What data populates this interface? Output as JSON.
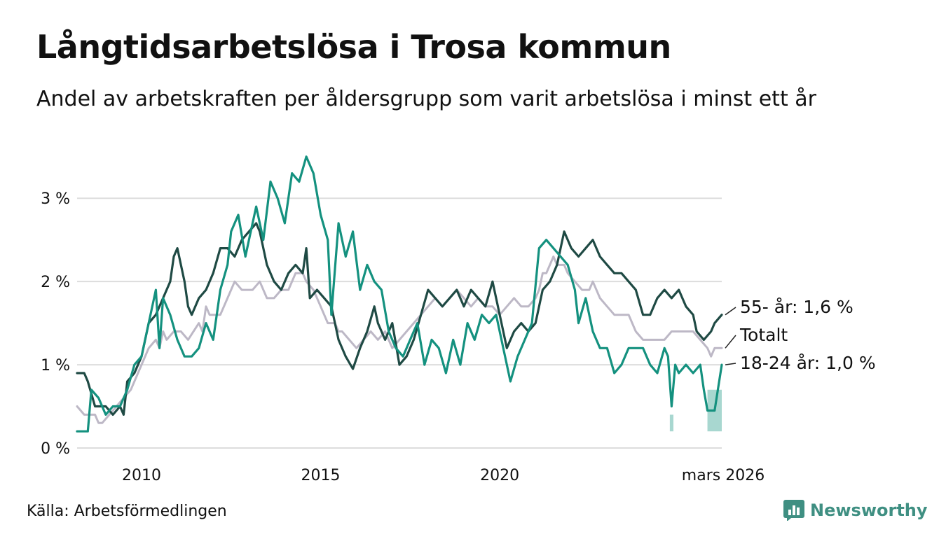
{
  "header": {
    "title": "Långtidsarbetslösa i Trosa kommun",
    "subtitle": "Andel av arbetskraften per åldersgrupp som varit arbetslösa i minst ett år"
  },
  "footer": {
    "source": "Källa: Arbetsförmedlingen",
    "brand": "Newsworthy"
  },
  "colors": {
    "old": "#1f4a44",
    "young": "#14917f",
    "total": "#bdb8c6",
    "band": "#9fd3cb",
    "grid": "#dddddd",
    "brand": "#3f8f82"
  },
  "chart_data": {
    "type": "line",
    "title": "Långtidsarbetslösa i Trosa kommun",
    "subtitle": "Andel av arbetskraften per åldersgrupp som varit arbetslösa i minst ett år",
    "xlim": [
      2008.2,
      2026.2
    ],
    "ylim": [
      0,
      3.7
    ],
    "y_ticks": [
      {
        "value": 0,
        "label": "0 %"
      },
      {
        "value": 1,
        "label": "1 %"
      },
      {
        "value": 2,
        "label": "2 %"
      },
      {
        "value": 3,
        "label": "3 %"
      }
    ],
    "x_ticks": [
      {
        "value": 2010,
        "label": "2010"
      },
      {
        "value": 2015,
        "label": "2015"
      },
      {
        "value": 2020,
        "label": "2020"
      },
      {
        "value": 2026.2,
        "label": "mars 2026"
      }
    ],
    "grid": true,
    "series": [
      {
        "name": "Totalt",
        "end_label": "Totalt",
        "color_key": "total",
        "points": [
          [
            2008.2,
            0.5
          ],
          [
            2008.4,
            0.4
          ],
          [
            2008.7,
            0.4
          ],
          [
            2008.8,
            0.3
          ],
          [
            2008.9,
            0.3
          ],
          [
            2009.1,
            0.4
          ],
          [
            2009.3,
            0.5
          ],
          [
            2009.5,
            0.6
          ],
          [
            2009.7,
            0.7
          ],
          [
            2009.9,
            0.9
          ],
          [
            2010.0,
            1.0
          ],
          [
            2010.2,
            1.2
          ],
          [
            2010.4,
            1.3
          ],
          [
            2010.5,
            1.2
          ],
          [
            2010.6,
            1.4
          ],
          [
            2010.7,
            1.3
          ],
          [
            2010.9,
            1.4
          ],
          [
            2011.1,
            1.4
          ],
          [
            2011.3,
            1.3
          ],
          [
            2011.6,
            1.5
          ],
          [
            2011.7,
            1.4
          ],
          [
            2011.8,
            1.7
          ],
          [
            2011.9,
            1.6
          ],
          [
            2012.2,
            1.6
          ],
          [
            2012.4,
            1.8
          ],
          [
            2012.6,
            2.0
          ],
          [
            2012.8,
            1.9
          ],
          [
            2013.1,
            1.9
          ],
          [
            2013.3,
            2.0
          ],
          [
            2013.5,
            1.8
          ],
          [
            2013.7,
            1.8
          ],
          [
            2013.9,
            1.9
          ],
          [
            2014.1,
            1.9
          ],
          [
            2014.3,
            2.1
          ],
          [
            2014.5,
            2.1
          ],
          [
            2014.6,
            2.0
          ],
          [
            2014.8,
            1.9
          ],
          [
            2015.0,
            1.7
          ],
          [
            2015.2,
            1.5
          ],
          [
            2015.4,
            1.5
          ],
          [
            2015.5,
            1.4
          ],
          [
            2015.6,
            1.4
          ],
          [
            2015.8,
            1.3
          ],
          [
            2016.0,
            1.2
          ],
          [
            2016.2,
            1.3
          ],
          [
            2016.4,
            1.4
          ],
          [
            2016.6,
            1.3
          ],
          [
            2016.8,
            1.4
          ],
          [
            2017.0,
            1.2
          ],
          [
            2017.2,
            1.3
          ],
          [
            2017.4,
            1.4
          ],
          [
            2017.6,
            1.5
          ],
          [
            2017.8,
            1.6
          ],
          [
            2018.0,
            1.7
          ],
          [
            2018.2,
            1.8
          ],
          [
            2018.4,
            1.7
          ],
          [
            2018.6,
            1.8
          ],
          [
            2018.8,
            1.9
          ],
          [
            2019.0,
            1.8
          ],
          [
            2019.2,
            1.7
          ],
          [
            2019.4,
            1.8
          ],
          [
            2019.6,
            1.7
          ],
          [
            2019.8,
            1.7
          ],
          [
            2020.0,
            1.6
          ],
          [
            2020.2,
            1.7
          ],
          [
            2020.4,
            1.8
          ],
          [
            2020.6,
            1.7
          ],
          [
            2020.8,
            1.7
          ],
          [
            2021.0,
            1.8
          ],
          [
            2021.1,
            1.9
          ],
          [
            2021.2,
            2.1
          ],
          [
            2021.3,
            2.1
          ],
          [
            2021.5,
            2.3
          ],
          [
            2021.6,
            2.2
          ],
          [
            2021.8,
            2.2
          ],
          [
            2021.9,
            2.1
          ],
          [
            2022.1,
            2.0
          ],
          [
            2022.3,
            1.9
          ],
          [
            2022.5,
            1.9
          ],
          [
            2022.6,
            2.0
          ],
          [
            2022.8,
            1.8
          ],
          [
            2023.0,
            1.7
          ],
          [
            2023.2,
            1.6
          ],
          [
            2023.4,
            1.6
          ],
          [
            2023.6,
            1.6
          ],
          [
            2023.8,
            1.4
          ],
          [
            2024.0,
            1.3
          ],
          [
            2024.2,
            1.3
          ],
          [
            2024.4,
            1.3
          ],
          [
            2024.6,
            1.3
          ],
          [
            2024.8,
            1.4
          ],
          [
            2025.0,
            1.4
          ],
          [
            2025.2,
            1.4
          ],
          [
            2025.4,
            1.4
          ],
          [
            2025.6,
            1.3
          ],
          [
            2025.8,
            1.2
          ],
          [
            2025.9,
            1.1
          ],
          [
            2026.0,
            1.2
          ],
          [
            2026.2,
            1.2
          ]
        ]
      },
      {
        "name": "55- år",
        "end_label": "55- år: 1,6 %",
        "color_key": "old",
        "points": [
          [
            2008.2,
            0.9
          ],
          [
            2008.4,
            0.9
          ],
          [
            2008.5,
            0.8
          ],
          [
            2008.7,
            0.5
          ],
          [
            2008.9,
            0.5
          ],
          [
            2009.0,
            0.5
          ],
          [
            2009.2,
            0.4
          ],
          [
            2009.4,
            0.5
          ],
          [
            2009.5,
            0.4
          ],
          [
            2009.6,
            0.8
          ],
          [
            2009.8,
            0.9
          ],
          [
            2010.0,
            1.1
          ],
          [
            2010.2,
            1.5
          ],
          [
            2010.4,
            1.6
          ],
          [
            2010.6,
            1.8
          ],
          [
            2010.8,
            2.0
          ],
          [
            2010.9,
            2.3
          ],
          [
            2011.0,
            2.4
          ],
          [
            2011.2,
            2.0
          ],
          [
            2011.3,
            1.7
          ],
          [
            2011.4,
            1.6
          ],
          [
            2011.6,
            1.8
          ],
          [
            2011.8,
            1.9
          ],
          [
            2012.0,
            2.1
          ],
          [
            2012.2,
            2.4
          ],
          [
            2012.4,
            2.4
          ],
          [
            2012.6,
            2.3
          ],
          [
            2012.8,
            2.5
          ],
          [
            2013.0,
            2.6
          ],
          [
            2013.2,
            2.7
          ],
          [
            2013.3,
            2.6
          ],
          [
            2013.5,
            2.2
          ],
          [
            2013.7,
            2.0
          ],
          [
            2013.9,
            1.9
          ],
          [
            2014.1,
            2.1
          ],
          [
            2014.3,
            2.2
          ],
          [
            2014.5,
            2.1
          ],
          [
            2014.6,
            2.4
          ],
          [
            2014.7,
            1.8
          ],
          [
            2014.9,
            1.9
          ],
          [
            2015.1,
            1.8
          ],
          [
            2015.3,
            1.7
          ],
          [
            2015.5,
            1.3
          ],
          [
            2015.7,
            1.1
          ],
          [
            2015.9,
            0.95
          ],
          [
            2016.1,
            1.2
          ],
          [
            2016.3,
            1.4
          ],
          [
            2016.5,
            1.7
          ],
          [
            2016.6,
            1.5
          ],
          [
            2016.8,
            1.3
          ],
          [
            2017.0,
            1.5
          ],
          [
            2017.2,
            1.0
          ],
          [
            2017.4,
            1.1
          ],
          [
            2017.6,
            1.3
          ],
          [
            2017.8,
            1.6
          ],
          [
            2018.0,
            1.9
          ],
          [
            2018.2,
            1.8
          ],
          [
            2018.4,
            1.7
          ],
          [
            2018.6,
            1.8
          ],
          [
            2018.8,
            1.9
          ],
          [
            2019.0,
            1.7
          ],
          [
            2019.2,
            1.9
          ],
          [
            2019.4,
            1.8
          ],
          [
            2019.6,
            1.7
          ],
          [
            2019.8,
            2.0
          ],
          [
            2020.0,
            1.6
          ],
          [
            2020.2,
            1.2
          ],
          [
            2020.4,
            1.4
          ],
          [
            2020.6,
            1.5
          ],
          [
            2020.8,
            1.4
          ],
          [
            2021.0,
            1.5
          ],
          [
            2021.2,
            1.9
          ],
          [
            2021.4,
            2.0
          ],
          [
            2021.6,
            2.2
          ],
          [
            2021.8,
            2.6
          ],
          [
            2022.0,
            2.4
          ],
          [
            2022.2,
            2.3
          ],
          [
            2022.4,
            2.4
          ],
          [
            2022.6,
            2.5
          ],
          [
            2022.8,
            2.3
          ],
          [
            2023.0,
            2.2
          ],
          [
            2023.2,
            2.1
          ],
          [
            2023.4,
            2.1
          ],
          [
            2023.6,
            2.0
          ],
          [
            2023.8,
            1.9
          ],
          [
            2024.0,
            1.6
          ],
          [
            2024.2,
            1.6
          ],
          [
            2024.4,
            1.8
          ],
          [
            2024.6,
            1.9
          ],
          [
            2024.8,
            1.8
          ],
          [
            2025.0,
            1.9
          ],
          [
            2025.2,
            1.7
          ],
          [
            2025.4,
            1.6
          ],
          [
            2025.5,
            1.4
          ],
          [
            2025.7,
            1.3
          ],
          [
            2025.9,
            1.4
          ],
          [
            2026.0,
            1.5
          ],
          [
            2026.2,
            1.6
          ]
        ]
      },
      {
        "name": "18-24 år",
        "end_label": "18-24 år: 1,0 %",
        "color_key": "young",
        "points": [
          [
            2008.2,
            0.2
          ],
          [
            2008.5,
            0.2
          ],
          [
            2008.6,
            0.7
          ],
          [
            2008.8,
            0.6
          ],
          [
            2009.0,
            0.4
          ],
          [
            2009.2,
            0.5
          ],
          [
            2009.4,
            0.5
          ],
          [
            2009.6,
            0.7
          ],
          [
            2009.8,
            1.0
          ],
          [
            2010.0,
            1.1
          ],
          [
            2010.2,
            1.5
          ],
          [
            2010.4,
            1.9
          ],
          [
            2010.5,
            1.2
          ],
          [
            2010.6,
            1.8
          ],
          [
            2010.8,
            1.6
          ],
          [
            2011.0,
            1.3
          ],
          [
            2011.2,
            1.1
          ],
          [
            2011.4,
            1.1
          ],
          [
            2011.6,
            1.2
          ],
          [
            2011.8,
            1.5
          ],
          [
            2012.0,
            1.3
          ],
          [
            2012.2,
            1.9
          ],
          [
            2012.4,
            2.2
          ],
          [
            2012.5,
            2.6
          ],
          [
            2012.7,
            2.8
          ],
          [
            2012.9,
            2.3
          ],
          [
            2013.0,
            2.5
          ],
          [
            2013.2,
            2.9
          ],
          [
            2013.4,
            2.5
          ],
          [
            2013.6,
            3.2
          ],
          [
            2013.8,
            3.0
          ],
          [
            2014.0,
            2.7
          ],
          [
            2014.2,
            3.3
          ],
          [
            2014.4,
            3.2
          ],
          [
            2014.6,
            3.5
          ],
          [
            2014.8,
            3.3
          ],
          [
            2015.0,
            2.8
          ],
          [
            2015.2,
            2.5
          ],
          [
            2015.3,
            1.6
          ],
          [
            2015.5,
            2.7
          ],
          [
            2015.7,
            2.3
          ],
          [
            2015.9,
            2.6
          ],
          [
            2016.1,
            1.9
          ],
          [
            2016.3,
            2.2
          ],
          [
            2016.5,
            2.0
          ],
          [
            2016.7,
            1.9
          ],
          [
            2016.9,
            1.4
          ],
          [
            2017.1,
            1.2
          ],
          [
            2017.3,
            1.1
          ],
          [
            2017.5,
            1.3
          ],
          [
            2017.7,
            1.5
          ],
          [
            2017.9,
            1.0
          ],
          [
            2018.1,
            1.3
          ],
          [
            2018.3,
            1.2
          ],
          [
            2018.5,
            0.9
          ],
          [
            2018.7,
            1.3
          ],
          [
            2018.9,
            1.0
          ],
          [
            2019.1,
            1.5
          ],
          [
            2019.3,
            1.3
          ],
          [
            2019.5,
            1.6
          ],
          [
            2019.7,
            1.5
          ],
          [
            2019.9,
            1.6
          ],
          [
            2020.1,
            1.2
          ],
          [
            2020.3,
            0.8
          ],
          [
            2020.5,
            1.1
          ],
          [
            2020.7,
            1.3
          ],
          [
            2020.9,
            1.5
          ],
          [
            2021.1,
            2.4
          ],
          [
            2021.3,
            2.5
          ],
          [
            2021.5,
            2.4
          ],
          [
            2021.7,
            2.3
          ],
          [
            2021.9,
            2.2
          ],
          [
            2022.1,
            1.9
          ],
          [
            2022.2,
            1.5
          ],
          [
            2022.4,
            1.8
          ],
          [
            2022.6,
            1.4
          ],
          [
            2022.8,
            1.2
          ],
          [
            2023.0,
            1.2
          ],
          [
            2023.2,
            0.9
          ],
          [
            2023.4,
            1.0
          ],
          [
            2023.6,
            1.2
          ],
          [
            2023.8,
            1.2
          ],
          [
            2024.0,
            1.2
          ],
          [
            2024.2,
            1.0
          ],
          [
            2024.4,
            0.9
          ],
          [
            2024.6,
            1.2
          ],
          [
            2024.7,
            1.1
          ],
          [
            2024.8,
            0.5
          ],
          [
            2024.9,
            1.0
          ],
          [
            2025.0,
            0.9
          ],
          [
            2025.2,
            1.0
          ],
          [
            2025.4,
            0.9
          ],
          [
            2025.6,
            1.0
          ],
          [
            2025.7,
            0.7
          ],
          [
            2025.8,
            0.45
          ],
          [
            2026.0,
            0.45
          ],
          [
            2026.2,
            1.0
          ]
        ]
      }
    ],
    "uncertainty_bands": [
      {
        "series": "18-24 år",
        "x": [
          2024.75,
          2024.85
        ],
        "low": 0.2,
        "high": 0.4
      },
      {
        "series": "18-24 år",
        "x": [
          2025.8,
          2026.2
        ],
        "low": 0.2,
        "high": 0.7
      }
    ]
  }
}
